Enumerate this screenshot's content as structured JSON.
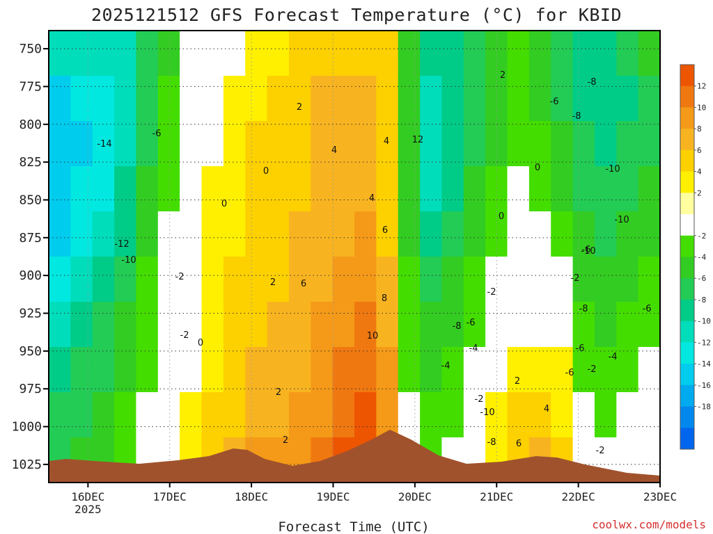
{
  "chart_data": {
    "type": "heatmap",
    "title": "2025121512 GFS Forecast Temperature (°C) for KBID",
    "xlabel": "Forecast Time (UTC)",
    "ylabel": "",
    "credit": "coolwx.com/models",
    "y_axis": {
      "ticks": [
        750,
        775,
        800,
        825,
        850,
        875,
        900,
        925,
        950,
        975,
        1000,
        1025
      ],
      "ylim": [
        1037,
        738
      ],
      "inverted": true
    },
    "x_axis": {
      "ticks": [
        "16DEC",
        "17DEC",
        "18DEC",
        "19DEC",
        "20DEC",
        "21DEC",
        "22DEC",
        "23DEC"
      ],
      "first_tick_sublabel": "2025",
      "xlim_days_from_16DEC": [
        -0.48,
        7.0
      ]
    },
    "colorbar": {
      "labels": [
        "12",
        "10",
        "8",
        "6",
        "4",
        "2",
        "-2",
        "-4",
        "-6",
        "-8",
        "-10",
        "-12",
        "-14",
        "-16",
        "-18"
      ],
      "colors": [
        "#ee5500",
        "#f07810",
        "#f49a18",
        "#f8b420",
        "#fdd000",
        "#fff000",
        "#ffffa0",
        "#ffffff",
        "#44dd00",
        "#33cc22",
        "#22cc55",
        "#00cc88",
        "#00ddbb",
        "#00e8e0",
        "#00ccee",
        "#00aaee",
        "#0088ee",
        "#0066ee"
      ]
    },
    "series": [
      {
        "values": [
          [
            -8,
            -8,
            -9,
            -12,
            -14,
            -15,
            -16,
            -16,
            -15,
            -12
          ],
          [
            -6,
            -7,
            -8,
            -10,
            -12,
            -13,
            -14,
            -15,
            -14,
            -12
          ],
          [
            -5,
            -6,
            -7,
            -8,
            -10,
            -12,
            -13,
            -14,
            -14,
            -12
          ],
          [
            -3,
            -4,
            -5,
            -6,
            -7,
            -9,
            -10,
            -11,
            -12,
            -11
          ],
          [
            -1,
            -2,
            -3,
            -3,
            -4,
            -5,
            -6,
            -7,
            -8,
            -8
          ],
          [
            1,
            0,
            -1,
            -1,
            -1,
            -2,
            -3,
            -3,
            -4,
            -5
          ],
          [
            3,
            2,
            1,
            1,
            1,
            0,
            0,
            -1,
            -1,
            -2
          ],
          [
            4,
            4,
            3,
            3,
            3,
            2,
            2,
            1,
            1,
            0
          ],
          [
            6,
            5,
            5,
            4,
            4,
            3,
            3,
            2,
            2,
            1
          ],
          [
            8,
            7,
            6,
            5,
            5,
            4,
            4,
            4,
            3,
            2
          ],
          [
            8,
            7,
            6,
            6,
            5,
            5,
            4,
            4,
            4,
            3
          ],
          [
            9,
            8,
            7,
            7,
            6,
            6,
            5,
            5,
            5,
            4
          ],
          [
            10,
            9,
            8,
            8,
            7,
            7,
            6,
            6,
            6,
            5
          ],
          [
            12,
            11,
            10,
            9,
            8,
            7,
            7,
            6,
            6,
            5
          ],
          [
            13,
            12,
            11,
            10,
            9,
            8,
            7,
            6,
            6,
            5
          ],
          [
            10,
            9,
            8,
            7,
            6,
            5,
            4,
            4,
            5,
            4
          ],
          [
            -1,
            -2,
            -3,
            -3,
            -4,
            -5,
            -6,
            -6,
            -6,
            -5
          ],
          [
            -3,
            -4,
            -5,
            -6,
            -8,
            -10,
            -11,
            -12,
            -11,
            -10
          ],
          [
            -2,
            -3,
            -4,
            -5,
            -6,
            -7,
            -9,
            -10,
            -10,
            -9
          ],
          [
            0,
            -1,
            -2,
            -3,
            -4,
            -5,
            -6,
            -7,
            -8,
            -8
          ],
          [
            3,
            2,
            1,
            0,
            -1,
            -3,
            -4,
            -5,
            -6,
            -6
          ],
          [
            5,
            4,
            2,
            1,
            0,
            -1,
            -2,
            -3,
            -4,
            -4
          ],
          [
            6,
            4,
            2,
            0,
            -1,
            -2,
            -3,
            -4,
            -5,
            -5
          ],
          [
            4,
            3,
            2,
            0,
            -2,
            -3,
            -5,
            -6,
            -7,
            -7
          ],
          [
            -1,
            -2,
            -3,
            -4,
            -5,
            -6,
            -7,
            -8,
            -9,
            -9
          ],
          [
            -2,
            -3,
            -4,
            -5,
            -6,
            -7,
            -8,
            -9,
            -10,
            -10
          ],
          [
            -1,
            -2,
            -3,
            -4,
            -5,
            -6,
            -7,
            -8,
            -9,
            -8
          ],
          [
            0,
            -1,
            -2,
            -3,
            -4,
            -5,
            -6,
            -7,
            -7,
            -6
          ]
        ]
      }
    ],
    "grid": true,
    "surface_terrain": true,
    "contour_labels": [
      "-14",
      "-12",
      "-10",
      "-6",
      "-2",
      "-2",
      "0",
      "0",
      "0",
      "2",
      "2",
      "2",
      "2",
      "4",
      "4",
      "4",
      "6",
      "6",
      "8",
      "10",
      "12",
      "-2",
      "-4",
      "-6",
      "-8",
      "-10",
      "-10",
      "-8",
      "-6",
      "-4",
      "-2",
      "0",
      "0",
      "2",
      "2",
      "4",
      "6",
      "-6",
      "-8",
      "-10",
      "-6",
      "-2",
      "-10",
      "-8",
      "-6",
      "-4",
      "-2",
      "-8",
      "-6",
      "-2"
    ]
  }
}
